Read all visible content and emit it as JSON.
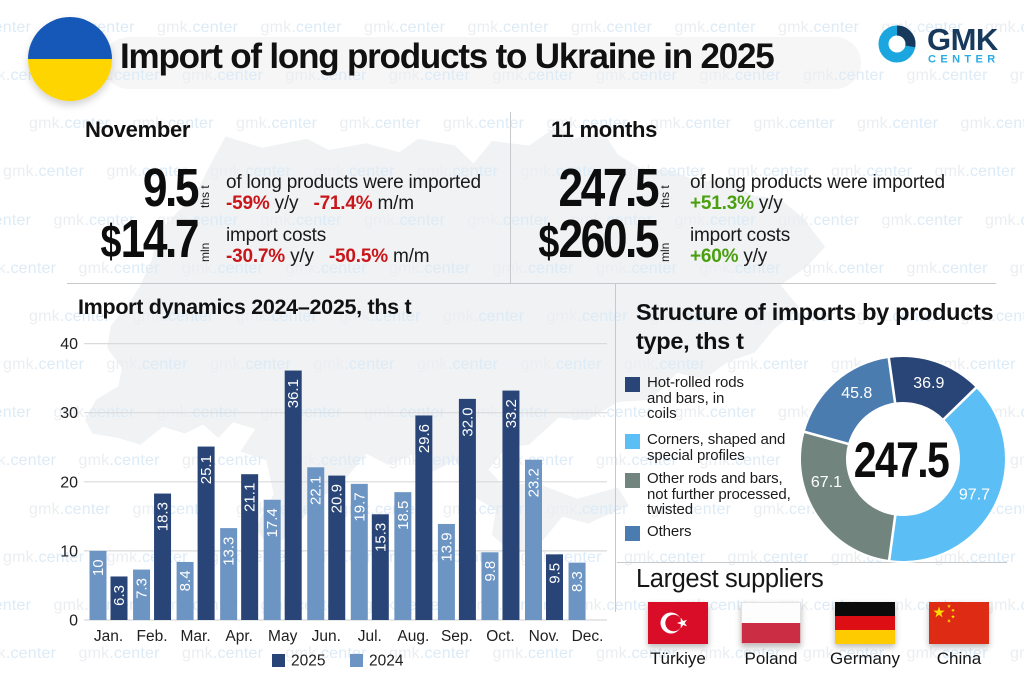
{
  "header": {
    "title": "Import of long products to Ukraine in 2025",
    "brand": {
      "name": "GMK",
      "subtitle": "CENTER"
    }
  },
  "watermark_text": "gmk.center",
  "stats": {
    "november": {
      "heading": "November",
      "rows": [
        {
          "value": "9.5",
          "unit": "ths t",
          "desc": "of long products were imported",
          "changes": [
            {
              "text": "-59%",
              "type": "neg"
            },
            {
              "text": "y/y",
              "type": "plain"
            },
            {
              "text": "-71.4%",
              "type": "neg"
            },
            {
              "text": "m/m",
              "type": "plain"
            }
          ]
        },
        {
          "value": "$14.7",
          "unit": "mln",
          "desc": "import costs",
          "changes": [
            {
              "text": "-30.7%",
              "type": "neg"
            },
            {
              "text": "y/y",
              "type": "plain"
            },
            {
              "text": "-50.5%",
              "type": "neg"
            },
            {
              "text": "m/m",
              "type": "plain"
            }
          ]
        }
      ]
    },
    "eleven_months": {
      "heading": "11 months",
      "rows": [
        {
          "value": "247.5",
          "unit": "ths t",
          "desc": "of long products were imported",
          "changes": [
            {
              "text": "+51.3%",
              "type": "pos"
            },
            {
              "text": "y/y",
              "type": "plain"
            }
          ]
        },
        {
          "value": "$260.5",
          "unit": "mln",
          "desc": "import costs",
          "changes": [
            {
              "text": "+60%",
              "type": "pos"
            },
            {
              "text": "y/y",
              "type": "plain"
            }
          ]
        }
      ]
    }
  },
  "palette": {
    "navy": "#294577",
    "light_blue_bar": "#6d95c3",
    "sky": "#5bbff5",
    "gray_green": "#71857e",
    "steel_blue": "#4a7cb0",
    "red": "#c9161a",
    "green": "#4ba011",
    "watermark": "#d4e3f1",
    "map": "#f0f2f3",
    "grid": "#d8dadb"
  },
  "chart_data": [
    {
      "type": "bar",
      "title": "Import dynamics 2024–2025, ths t",
      "categories": [
        "Jan.",
        "Feb.",
        "Mar.",
        "Apr.",
        "May",
        "Jun.",
        "Jul.",
        "Aug.",
        "Sep.",
        "Oct.",
        "Nov.",
        "Dec."
      ],
      "series": [
        {
          "name": "2025",
          "color_key": "navy",
          "values": [
            6.3,
            18.3,
            25.1,
            21.1,
            36.1,
            20.9,
            15.3,
            29.6,
            32.0,
            33.2,
            9.5,
            null
          ],
          "labels": [
            "6.3",
            "18.3",
            "25.1",
            "21.1",
            "36.1",
            "20.9",
            "15.3",
            "29.6",
            "32.0",
            "33.2",
            "9.5",
            ""
          ]
        },
        {
          "name": "2024",
          "color_key": "light_blue_bar",
          "values": [
            10,
            7.3,
            8.4,
            13.3,
            17.4,
            22.1,
            19.7,
            18.5,
            13.9,
            9.8,
            23.2,
            8.3
          ],
          "labels": [
            "10",
            "7.3",
            "8.4",
            "13.3",
            "17.4",
            "22.1",
            "19.7",
            "18.5",
            "13.9",
            "9.8",
            "23.2",
            "8.3"
          ]
        }
      ],
      "ylim": [
        0,
        40
      ],
      "yticks": [
        "0",
        "10",
        "20",
        "30",
        "40"
      ],
      "legend": [
        "2025",
        "2024"
      ],
      "grid": true,
      "legend_position": "bottom"
    },
    {
      "type": "pie",
      "title": "Structure of imports by products type, ths t",
      "title_lines": [
        "Structure of imports by products",
        "type, ths t"
      ],
      "center_label": "247.5",
      "segments": [
        {
          "label": "Hot-rolled rods and bars, in coils",
          "value": 36.9,
          "display": "36.9",
          "color_key": "navy",
          "legend_lines": "Hot-rolled rods\nand bars, in\ncoils"
        },
        {
          "label": "Corners, shaped and special profiles",
          "value": 97.7,
          "display": "97.7",
          "color_key": "sky",
          "legend_lines": "Corners, shaped and\nspecial profiles"
        },
        {
          "label": "Other rods and bars, not further processed, twisted",
          "value": 67.1,
          "display": "67.1",
          "color_key": "gray_green",
          "legend_lines": "Other rods and bars,\nnot further processed,\ntwisted"
        },
        {
          "label": "Others",
          "value": 45.8,
          "display": "45.8",
          "color_key": "steel_blue",
          "legend_lines": "Others"
        }
      ],
      "legend_position": "left"
    }
  ],
  "suppliers": {
    "heading": "Largest suppliers",
    "items": [
      {
        "name": "Türkiye",
        "flag": "turkey-flag"
      },
      {
        "name": "Poland",
        "flag": "poland-flag"
      },
      {
        "name": "Germany",
        "flag": "germany-flag"
      },
      {
        "name": "China",
        "flag": "china-flag"
      }
    ]
  }
}
